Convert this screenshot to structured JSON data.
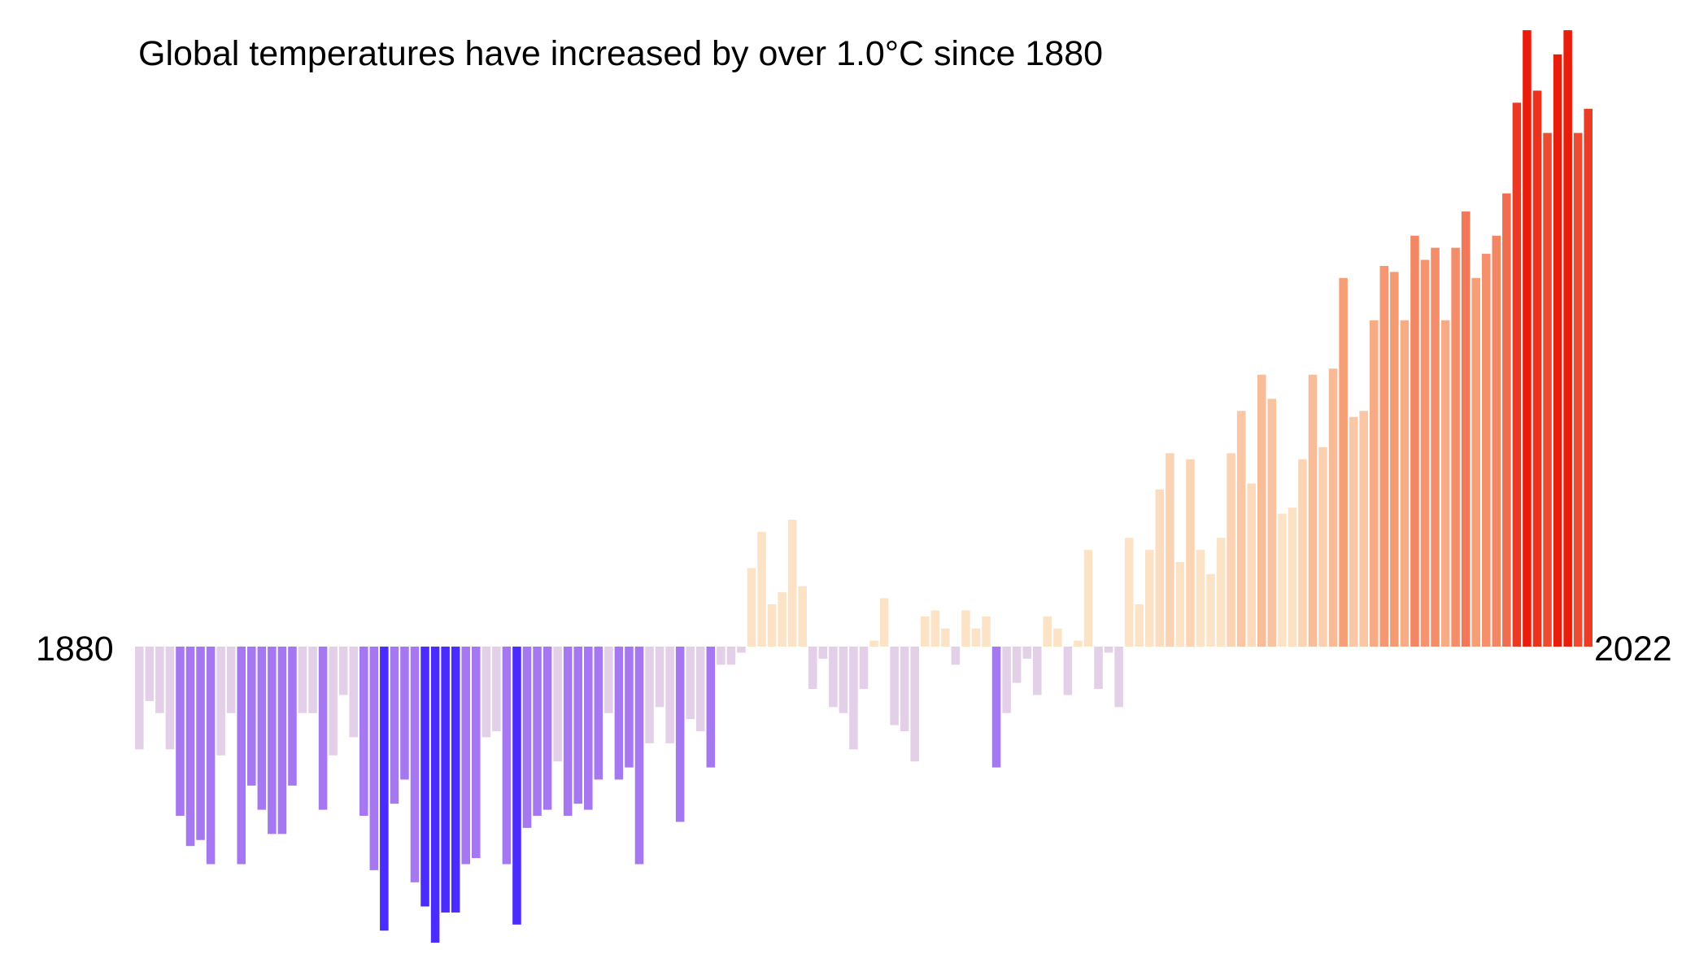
{
  "chart_data": {
    "type": "bar",
    "title": "Global temperatures have increased by over 1.0°C since 1880",
    "xlabel": "",
    "ylabel": "",
    "start_label": "1880",
    "end_label": "2022",
    "x_start": 1880,
    "x_end": 2022,
    "ylim": [
      -0.5,
      1.02
    ],
    "grid": false,
    "legend": "none",
    "color_scale": {
      "cold_strong": "#4a2cff",
      "cold": "#a577f0",
      "neutral_cool": "#e3d0e8",
      "neutral_warm": "#fde3c6",
      "warm": "#f6a27a",
      "hot": "#e81d0c"
    },
    "categories": [
      1880,
      1881,
      1882,
      1883,
      1884,
      1885,
      1886,
      1887,
      1888,
      1889,
      1890,
      1891,
      1892,
      1893,
      1894,
      1895,
      1896,
      1897,
      1898,
      1899,
      1900,
      1901,
      1902,
      1903,
      1904,
      1905,
      1906,
      1907,
      1908,
      1909,
      1910,
      1911,
      1912,
      1913,
      1914,
      1915,
      1916,
      1917,
      1918,
      1919,
      1920,
      1921,
      1922,
      1923,
      1924,
      1925,
      1926,
      1927,
      1928,
      1929,
      1930,
      1931,
      1932,
      1933,
      1934,
      1935,
      1936,
      1937,
      1938,
      1939,
      1940,
      1941,
      1942,
      1943,
      1944,
      1945,
      1946,
      1947,
      1948,
      1949,
      1950,
      1951,
      1952,
      1953,
      1954,
      1955,
      1956,
      1957,
      1958,
      1959,
      1960,
      1961,
      1962,
      1963,
      1964,
      1965,
      1966,
      1967,
      1968,
      1969,
      1970,
      1971,
      1972,
      1973,
      1974,
      1975,
      1976,
      1977,
      1978,
      1979,
      1980,
      1981,
      1982,
      1983,
      1984,
      1985,
      1986,
      1987,
      1988,
      1989,
      1990,
      1991,
      1992,
      1993,
      1994,
      1995,
      1996,
      1997,
      1998,
      1999,
      2000,
      2001,
      2002,
      2003,
      2004,
      2005,
      2006,
      2007,
      2008,
      2009,
      2010,
      2011,
      2012,
      2013,
      2014,
      2015,
      2016,
      2017,
      2018,
      2019,
      2020,
      2021,
      2022
    ],
    "values": [
      -0.17,
      -0.09,
      -0.11,
      -0.17,
      -0.28,
      -0.33,
      -0.32,
      -0.36,
      -0.18,
      -0.11,
      -0.36,
      -0.23,
      -0.27,
      -0.31,
      -0.31,
      -0.23,
      -0.11,
      -0.11,
      -0.27,
      -0.18,
      -0.08,
      -0.15,
      -0.28,
      -0.37,
      -0.47,
      -0.26,
      -0.22,
      -0.39,
      -0.43,
      -0.49,
      -0.44,
      -0.44,
      -0.36,
      -0.35,
      -0.15,
      -0.14,
      -0.36,
      -0.46,
      -0.3,
      -0.28,
      -0.27,
      -0.19,
      -0.28,
      -0.26,
      -0.27,
      -0.22,
      -0.11,
      -0.22,
      -0.2,
      -0.36,
      -0.16,
      -0.1,
      -0.16,
      -0.29,
      -0.12,
      -0.14,
      -0.2,
      -0.03,
      -0.03,
      -0.01,
      0.13,
      0.19,
      0.07,
      0.09,
      0.21,
      0.1,
      -0.07,
      -0.02,
      -0.1,
      -0.11,
      -0.17,
      -0.07,
      0.01,
      0.08,
      -0.13,
      -0.14,
      -0.19,
      0.05,
      0.06,
      0.03,
      -0.03,
      0.06,
      0.03,
      0.05,
      -0.2,
      -0.11,
      -0.06,
      -0.02,
      -0.08,
      0.05,
      0.03,
      -0.08,
      0.01,
      0.16,
      -0.07,
      -0.01,
      -0.1,
      0.18,
      0.07,
      0.16,
      0.26,
      0.32,
      0.14,
      0.31,
      0.16,
      0.12,
      0.18,
      0.32,
      0.39,
      0.27,
      0.45,
      0.41,
      0.22,
      0.23,
      0.31,
      0.45,
      0.33,
      0.46,
      0.61,
      0.38,
      0.39,
      0.54,
      0.63,
      0.62,
      0.54,
      0.68,
      0.64,
      0.66,
      0.54,
      0.66,
      0.72,
      0.61,
      0.65,
      0.68,
      0.75,
      0.9,
      1.02,
      0.92,
      0.85,
      0.98,
      1.02,
      0.85,
      0.89
    ]
  }
}
